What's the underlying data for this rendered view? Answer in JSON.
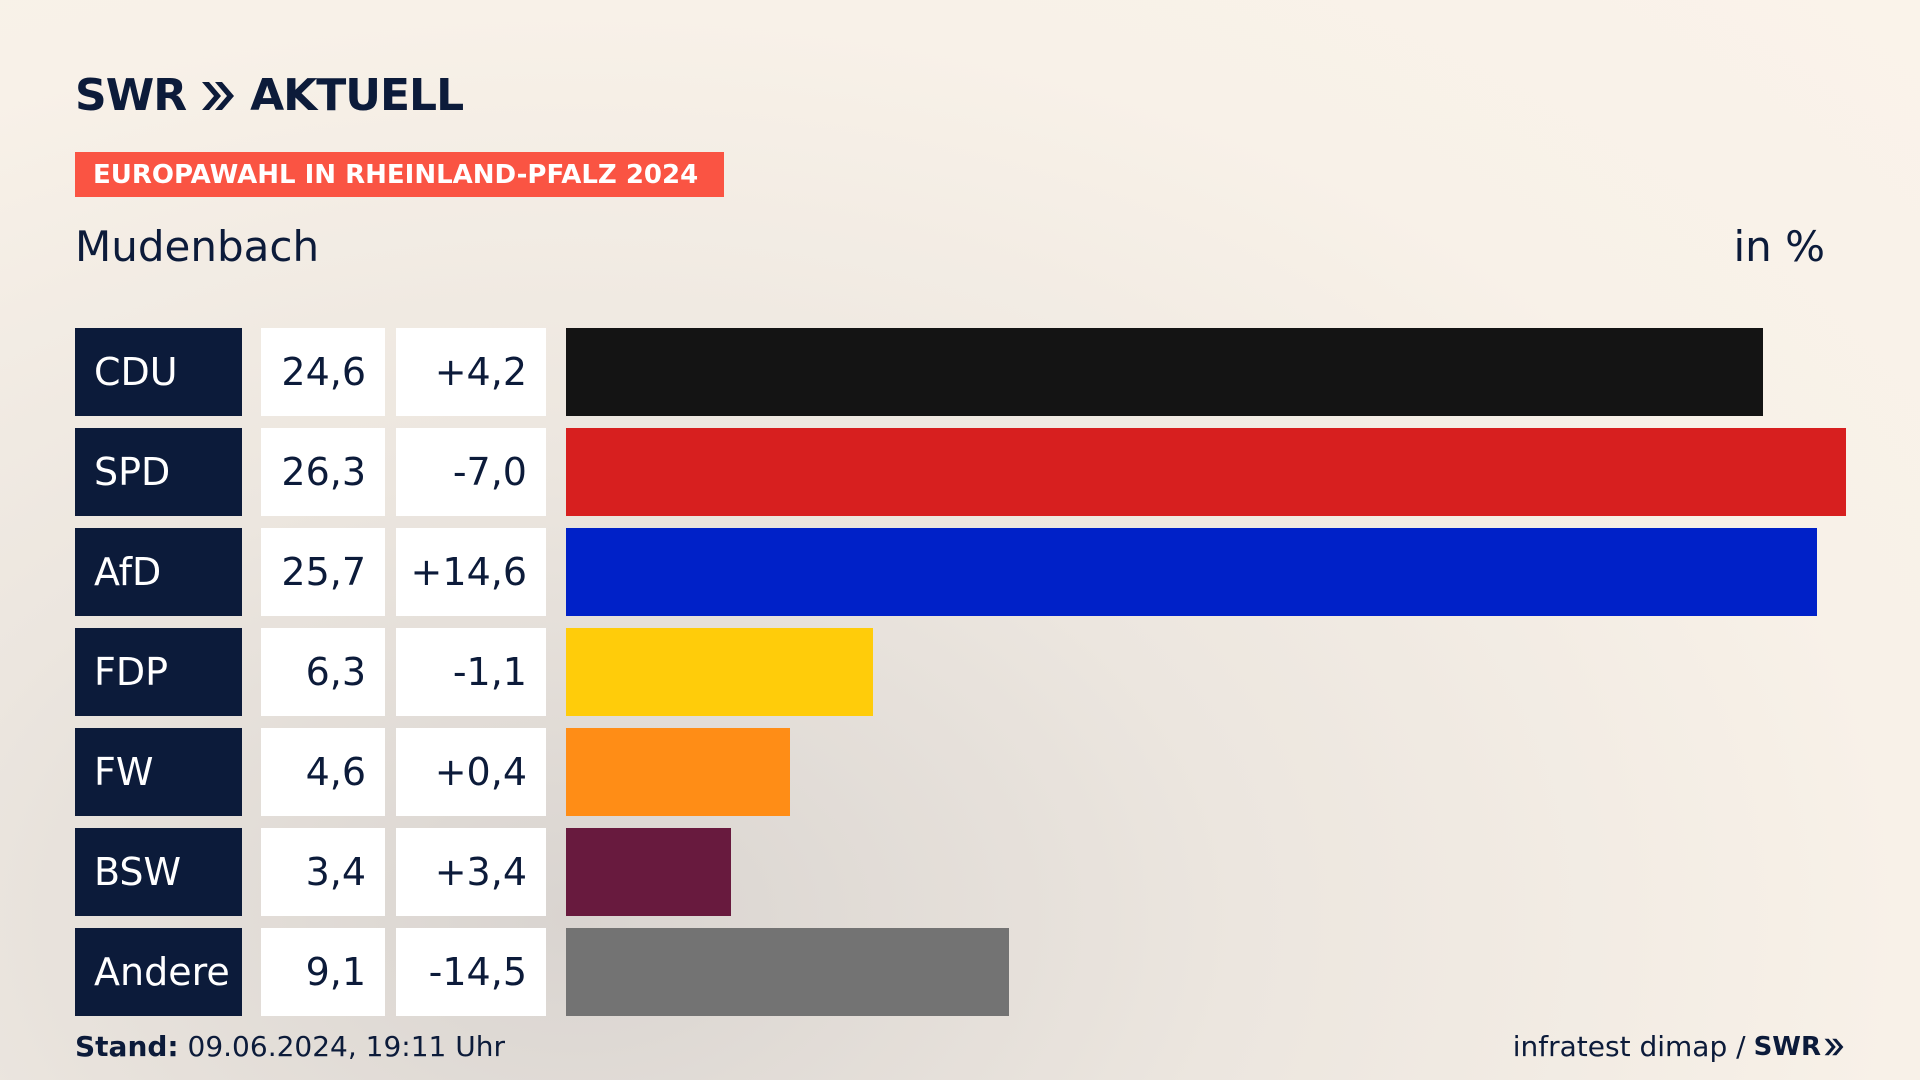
{
  "header": {
    "logo_brand": "SWR",
    "logo_suffix": "AKTUELL",
    "banner": "EUROPAWAHL IN RHEINLAND-PFALZ 2024"
  },
  "place": "Mudenbach",
  "unit": "in %",
  "footer": {
    "stand_label": "Stand:",
    "stand_value": "09.06.2024, 19:11 Uhr",
    "source": "infratest dimap /",
    "source_brand": "SWR"
  },
  "colors": {
    "navy": "#0c1b3a",
    "banner": "#fa5443"
  },
  "chart_data": {
    "type": "bar",
    "orientation": "horizontal",
    "categories": [
      "CDU",
      "SPD",
      "AfD",
      "FDP",
      "FW",
      "BSW",
      "Andere"
    ],
    "values": [
      24.6,
      26.3,
      25.7,
      6.3,
      4.6,
      3.4,
      9.1
    ],
    "value_labels": [
      "24,6",
      "26,3",
      "25,7",
      "6,3",
      "4,6",
      "3,4",
      "9,1"
    ],
    "diff_labels": [
      "+4,2",
      "-7,0",
      "+14,6",
      "-1,1",
      "+0,4",
      "+3,4",
      "-14,5"
    ],
    "colors": [
      "#141414",
      "#d71f1f",
      "#0021c8",
      "#ffcc0a",
      "#ff8d16",
      "#681a3e",
      "#737373"
    ],
    "xlim": [
      0,
      26.3
    ],
    "grid": false,
    "legend": "none"
  }
}
